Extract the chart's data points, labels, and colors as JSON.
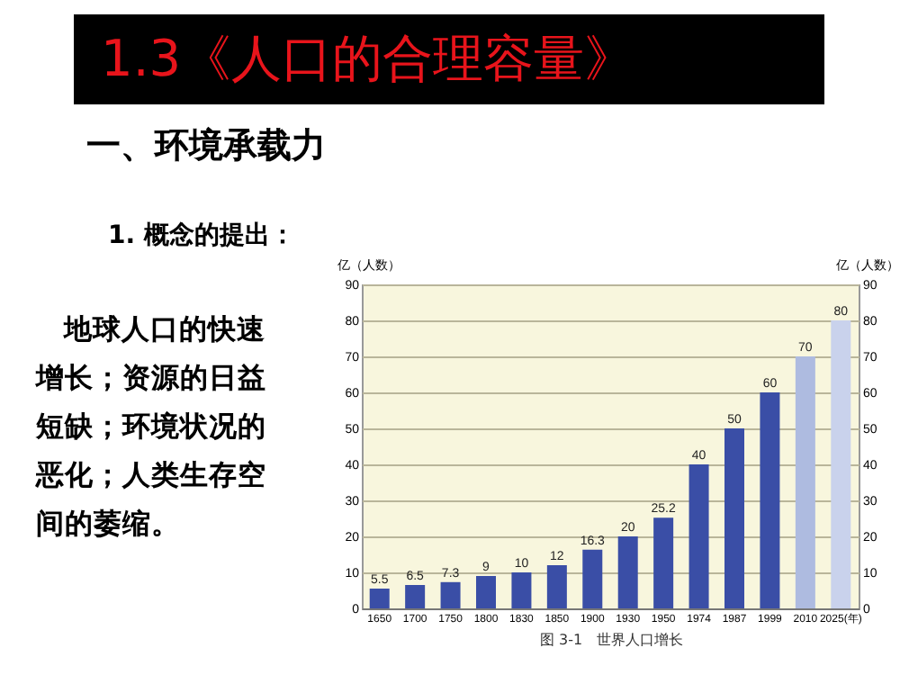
{
  "chart_data": {
    "type": "bar",
    "title": "1.3《人口的合理容量》",
    "subtitle": "一、环境承载力",
    "annotations": [
      "1. 概念的提出：",
      "地球人口的快速增长；资源的日益短缺；环境状况的恶化；人类生存空间的萎缩。",
      "图 3-1　世界人口增长"
    ],
    "ylabel": "亿（人数）",
    "y2label": "亿（人数）",
    "categories": [
      "1650",
      "1700",
      "1750",
      "1800",
      "1830",
      "1850",
      "1900",
      "1930",
      "1950",
      "1974",
      "1987",
      "1999",
      "2010",
      "2025(年)"
    ],
    "values": [
      5.5,
      6.5,
      7.3,
      9,
      10,
      12,
      16.3,
      20,
      25.2,
      40,
      50,
      60,
      70,
      80
    ],
    "colors": [
      "#3a4ea6",
      "#3a4ea6",
      "#3a4ea6",
      "#3a4ea6",
      "#3a4ea6",
      "#3a4ea6",
      "#3a4ea6",
      "#3a4ea6",
      "#3a4ea6",
      "#3a4ea6",
      "#3a4ea6",
      "#3a4ea6",
      "#aebbe0",
      "#c9d2ec"
    ],
    "ylim": [
      0,
      90
    ],
    "yticks": [
      0,
      10,
      20,
      30,
      40,
      50,
      60,
      70,
      80,
      90
    ],
    "y2lim": [
      0,
      90
    ],
    "y2ticks": [
      0,
      10,
      20,
      30,
      40,
      50,
      60,
      70,
      80,
      90
    ],
    "data_labels": true,
    "grid": "y"
  }
}
